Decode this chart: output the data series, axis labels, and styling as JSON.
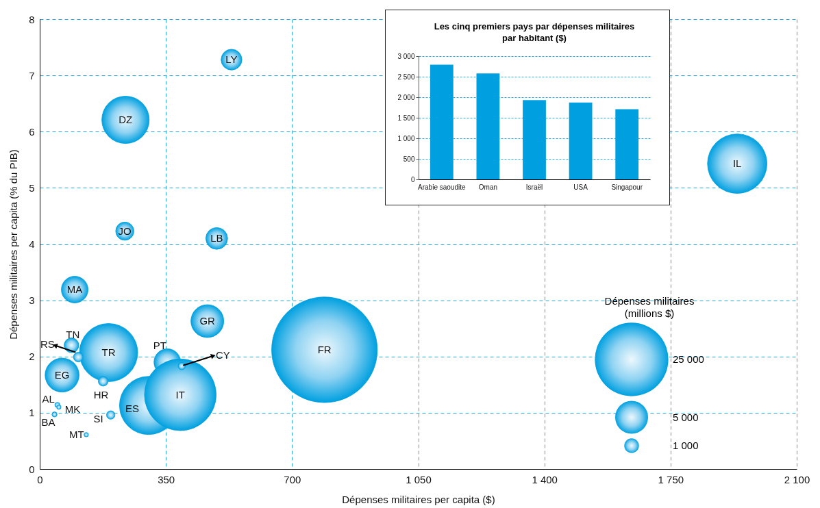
{
  "chart_data": [
    {
      "type": "bubble",
      "xlabel": "Dépenses militaires per capita ($)",
      "ylabel": "Dépenses militaires per capita (% du PIB)",
      "legend_title": "Dépenses militaires\n(millions $)",
      "color": "#00a0e0",
      "x": [
        790,
        1935,
        238,
        302,
        354,
        390,
        191,
        62,
        465,
        97,
        491,
        236,
        532,
        88,
        107,
        176,
        197,
        394,
        49,
        53,
        41,
        129
      ],
      "values": [
        2.12,
        5.43,
        6.21,
        1.13,
        1.9,
        1.32,
        2.07,
        1.67,
        2.63,
        3.19,
        4.1,
        4.23,
        7.28,
        2.2,
        1.99,
        1.56,
        0.96,
        1.83,
        1.14,
        1.1,
        0.97,
        0.61
      ],
      "sizes": [
        51700,
        16400,
        10400,
        15700,
        3300,
        23800,
        15700,
        5350,
        5000,
        3300,
        2200,
        1540,
        2000,
        1000,
        440,
        440,
        330,
        250,
        120,
        90,
        120,
        90
      ],
      "size_legend": [
        {
          "value": 25000,
          "label": "25 000"
        },
        {
          "value": 5000,
          "label": "5 000"
        },
        {
          "value": 1000,
          "label": "1 000"
        }
      ],
      "xlim": [
        0,
        2100
      ],
      "ylim": [
        0,
        8
      ],
      "xticks": [
        0,
        350,
        700,
        {
          "value": 1050,
          "label": "1 050"
        },
        {
          "value": 1400,
          "label": "1 400"
        },
        {
          "value": 1750,
          "label": "1 750"
        },
        {
          "value": 2100,
          "label": "2 100"
        }
      ],
      "yticks": [
        0,
        1,
        2,
        3,
        4,
        5,
        6,
        7,
        8
      ],
      "grid": true,
      "annotations": [
        {
          "text": "FR",
          "x": 790,
          "y": 2.12
        },
        {
          "text": "IL",
          "x": 1935,
          "y": 5.43
        },
        {
          "text": "DZ",
          "x": 238,
          "y": 6.21
        },
        {
          "text": "ES",
          "x": 302,
          "y": 1.13
        },
        {
          "text": "PT",
          "x": 354,
          "y": 1.9
        },
        {
          "text": "IT",
          "x": 390,
          "y": 1.32
        },
        {
          "text": "TR",
          "x": 191,
          "y": 2.07
        },
        {
          "text": "EG",
          "x": 62,
          "y": 1.67
        },
        {
          "text": "GR",
          "x": 465,
          "y": 2.63
        },
        {
          "text": "MA",
          "x": 97,
          "y": 3.19
        },
        {
          "text": "LB",
          "x": 491,
          "y": 4.1
        },
        {
          "text": "JO",
          "x": 236,
          "y": 4.23
        },
        {
          "text": "LY",
          "x": 532,
          "y": 7.28
        },
        {
          "text": "TN",
          "x": 88,
          "y": 2.2
        },
        {
          "text": "RS",
          "x": 107,
          "y": 1.99
        },
        {
          "text": "HR",
          "x": 176,
          "y": 1.56
        },
        {
          "text": "SI",
          "x": 197,
          "y": 0.96
        },
        {
          "text": "CY",
          "x": 394,
          "y": 1.83
        },
        {
          "text": "AL",
          "x": 49,
          "y": 1.14
        },
        {
          "text": "MK",
          "x": 53,
          "y": 1.1
        },
        {
          "text": "BA",
          "x": 41,
          "y": 0.97
        },
        {
          "text": "MT",
          "x": 129,
          "y": 0.61
        }
      ]
    },
    {
      "type": "bar",
      "title": "Les cinq premiers pays par dépenses militaires\npar habitant ($)",
      "categories": [
        "Arabie saoudite",
        "Oman",
        "Israël",
        "USA",
        "Singapour"
      ],
      "values": [
        2790,
        2580,
        1930,
        1870,
        1710
      ],
      "color": "#009fe0",
      "ylim": [
        0,
        3000
      ],
      "yticks": [
        0,
        500,
        {
          "value": 1000,
          "label": "1 000"
        },
        {
          "value": 1500,
          "label": "1 500"
        },
        {
          "value": 2000,
          "label": "2 000"
        },
        {
          "value": 2500,
          "label": "2 500"
        },
        {
          "value": 3000,
          "label": "3 000"
        }
      ],
      "grid": "y"
    }
  ]
}
